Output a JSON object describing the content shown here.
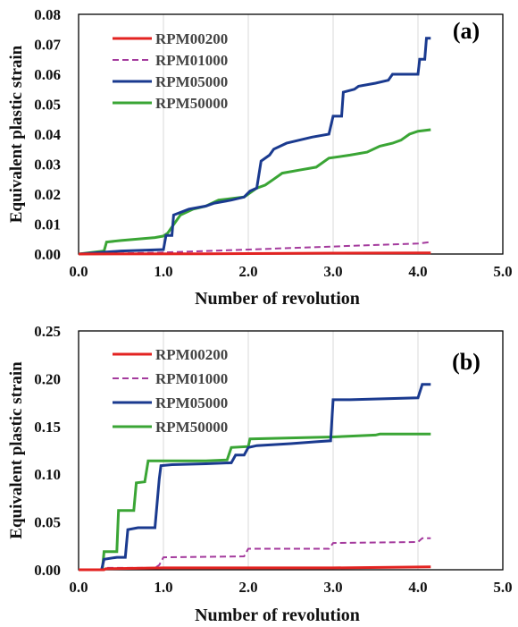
{
  "chart_data": [
    {
      "type": "line",
      "panel_label": "(a)",
      "xlabel": "Number of revolution",
      "ylabel": "Equivalent plastic strain",
      "xlim": [
        0,
        5
      ],
      "ylim": [
        0,
        0.08
      ],
      "x_ticks": [
        "0.0",
        "1.0",
        "2.0",
        "3.0",
        "4.0",
        "5.0"
      ],
      "y_ticks": [
        "0.00",
        "0.01",
        "0.02",
        "0.03",
        "0.04",
        "0.05",
        "0.06",
        "0.07",
        "0.08"
      ],
      "grid": "vertical",
      "legend_position": "top-left",
      "series": [
        {
          "name": "RPM00200",
          "color": "#e32321",
          "dash": "solid",
          "points": [
            [
              0,
              0
            ],
            [
              1.5,
              0.0001
            ],
            [
              2.5,
              0.0002
            ],
            [
              3.0,
              0.0003
            ],
            [
              4.15,
              0.0004
            ]
          ]
        },
        {
          "name": "RPM01000",
          "color": "#a43a9d",
          "dash": "dashed",
          "points": [
            [
              0,
              0
            ],
            [
              0.5,
              0.0002
            ],
            [
              1.0,
              0.0005
            ],
            [
              1.5,
              0.001
            ],
            [
              2.0,
              0.0015
            ],
            [
              2.5,
              0.002
            ],
            [
              3.0,
              0.0025
            ],
            [
              3.5,
              0.003
            ],
            [
              4.0,
              0.0035
            ],
            [
              4.15,
              0.004
            ]
          ]
        },
        {
          "name": "RPM05000",
          "color": "#1a3a8f",
          "dash": "solid",
          "points": [
            [
              0,
              0
            ],
            [
              0.5,
              0.001
            ],
            [
              1.0,
              0.0015
            ],
            [
              1.03,
              0.0062
            ],
            [
              1.1,
              0.0062
            ],
            [
              1.12,
              0.013
            ],
            [
              1.3,
              0.015
            ],
            [
              1.5,
              0.016
            ],
            [
              1.6,
              0.017
            ],
            [
              1.8,
              0.018
            ],
            [
              1.95,
              0.019
            ],
            [
              2.02,
              0.021
            ],
            [
              2.1,
              0.022
            ],
            [
              2.15,
              0.031
            ],
            [
              2.25,
              0.033
            ],
            [
              2.3,
              0.035
            ],
            [
              2.45,
              0.037
            ],
            [
              2.6,
              0.038
            ],
            [
              2.75,
              0.039
            ],
            [
              2.95,
              0.04
            ],
            [
              3.0,
              0.046
            ],
            [
              3.1,
              0.046
            ],
            [
              3.12,
              0.054
            ],
            [
              3.25,
              0.055
            ],
            [
              3.3,
              0.056
            ],
            [
              3.5,
              0.057
            ],
            [
              3.65,
              0.058
            ],
            [
              3.7,
              0.06
            ],
            [
              3.85,
              0.06
            ],
            [
              4.0,
              0.06
            ],
            [
              4.02,
              0.065
            ],
            [
              4.08,
              0.065
            ],
            [
              4.1,
              0.072
            ],
            [
              4.15,
              0.072
            ]
          ]
        },
        {
          "name": "RPM50000",
          "color": "#3aa535",
          "dash": "solid",
          "points": [
            [
              0,
              0
            ],
            [
              0.3,
              0.001
            ],
            [
              0.33,
              0.004
            ],
            [
              0.5,
              0.0045
            ],
            [
              0.7,
              0.005
            ],
            [
              0.9,
              0.0055
            ],
            [
              1.0,
              0.006
            ],
            [
              1.05,
              0.007
            ],
            [
              1.1,
              0.009
            ],
            [
              1.2,
              0.013
            ],
            [
              1.35,
              0.015
            ],
            [
              1.5,
              0.016
            ],
            [
              1.65,
              0.018
            ],
            [
              1.8,
              0.0185
            ],
            [
              1.95,
              0.019
            ],
            [
              2.0,
              0.02
            ],
            [
              2.1,
              0.022
            ],
            [
              2.2,
              0.023
            ],
            [
              2.3,
              0.025
            ],
            [
              2.4,
              0.027
            ],
            [
              2.6,
              0.028
            ],
            [
              2.8,
              0.029
            ],
            [
              2.95,
              0.032
            ],
            [
              3.2,
              0.033
            ],
            [
              3.4,
              0.034
            ],
            [
              3.55,
              0.036
            ],
            [
              3.7,
              0.037
            ],
            [
              3.8,
              0.038
            ],
            [
              3.9,
              0.04
            ],
            [
              4.0,
              0.041
            ],
            [
              4.15,
              0.0415
            ]
          ]
        }
      ]
    },
    {
      "type": "line",
      "panel_label": "(b)",
      "xlabel": "Number of revolution",
      "ylabel": "Equivalent plastic strain",
      "xlim": [
        0,
        5
      ],
      "ylim": [
        0,
        0.25
      ],
      "x_ticks": [
        "0.0",
        "1.0",
        "2.0",
        "3.0",
        "4.0",
        "5.0"
      ],
      "y_ticks": [
        "0.00",
        "0.05",
        "0.10",
        "0.15",
        "0.20",
        "0.25"
      ],
      "grid": "vertical",
      "legend_position": "top-left",
      "series": [
        {
          "name": "RPM00200",
          "color": "#e32321",
          "dash": "solid",
          "points": [
            [
              0,
              0
            ],
            [
              0.3,
              0
            ],
            [
              0.32,
              0.001
            ],
            [
              1.0,
              0.002
            ],
            [
              2.0,
              0.002
            ],
            [
              3.0,
              0.002
            ],
            [
              4.15,
              0.003
            ]
          ]
        },
        {
          "name": "RPM01000",
          "color": "#a43a9d",
          "dash": "dashed",
          "points": [
            [
              0,
              0
            ],
            [
              0.3,
              0
            ],
            [
              0.32,
              0.002
            ],
            [
              0.9,
              0.002
            ],
            [
              0.95,
              0.005
            ],
            [
              1.0,
              0.013
            ],
            [
              1.95,
              0.014
            ],
            [
              2.0,
              0.022
            ],
            [
              2.95,
              0.022
            ],
            [
              3.0,
              0.028
            ],
            [
              4.0,
              0.029
            ],
            [
              4.05,
              0.033
            ],
            [
              4.15,
              0.033
            ]
          ]
        },
        {
          "name": "RPM05000",
          "color": "#1a3a8f",
          "dash": "solid",
          "points": [
            [
              0,
              0
            ],
            [
              0.27,
              0
            ],
            [
              0.3,
              0.011
            ],
            [
              0.45,
              0.013
            ],
            [
              0.55,
              0.013
            ],
            [
              0.58,
              0.042
            ],
            [
              0.7,
              0.044
            ],
            [
              0.9,
              0.044
            ],
            [
              0.95,
              0.095
            ],
            [
              0.97,
              0.109
            ],
            [
              1.1,
              0.11
            ],
            [
              1.5,
              0.111
            ],
            [
              1.8,
              0.112
            ],
            [
              1.85,
              0.12
            ],
            [
              1.95,
              0.12
            ],
            [
              2.0,
              0.128
            ],
            [
              2.1,
              0.13
            ],
            [
              2.5,
              0.132
            ],
            [
              2.8,
              0.134
            ],
            [
              2.97,
              0.135
            ],
            [
              3.0,
              0.178
            ],
            [
              3.2,
              0.178
            ],
            [
              4.0,
              0.18
            ],
            [
              4.05,
              0.194
            ],
            [
              4.15,
              0.194
            ]
          ]
        },
        {
          "name": "RPM50000",
          "color": "#3aa535",
          "dash": "solid",
          "points": [
            [
              0,
              0
            ],
            [
              0.28,
              0
            ],
            [
              0.3,
              0.019
            ],
            [
              0.45,
              0.019
            ],
            [
              0.47,
              0.062
            ],
            [
              0.65,
              0.062
            ],
            [
              0.68,
              0.091
            ],
            [
              0.78,
              0.092
            ],
            [
              0.82,
              0.114
            ],
            [
              1.2,
              0.114
            ],
            [
              1.5,
              0.114
            ],
            [
              1.75,
              0.115
            ],
            [
              1.8,
              0.128
            ],
            [
              2.0,
              0.129
            ],
            [
              2.02,
              0.137
            ],
            [
              2.5,
              0.138
            ],
            [
              3.0,
              0.139
            ],
            [
              3.5,
              0.141
            ],
            [
              3.55,
              0.142
            ],
            [
              4.15,
              0.142
            ]
          ]
        }
      ]
    }
  ]
}
